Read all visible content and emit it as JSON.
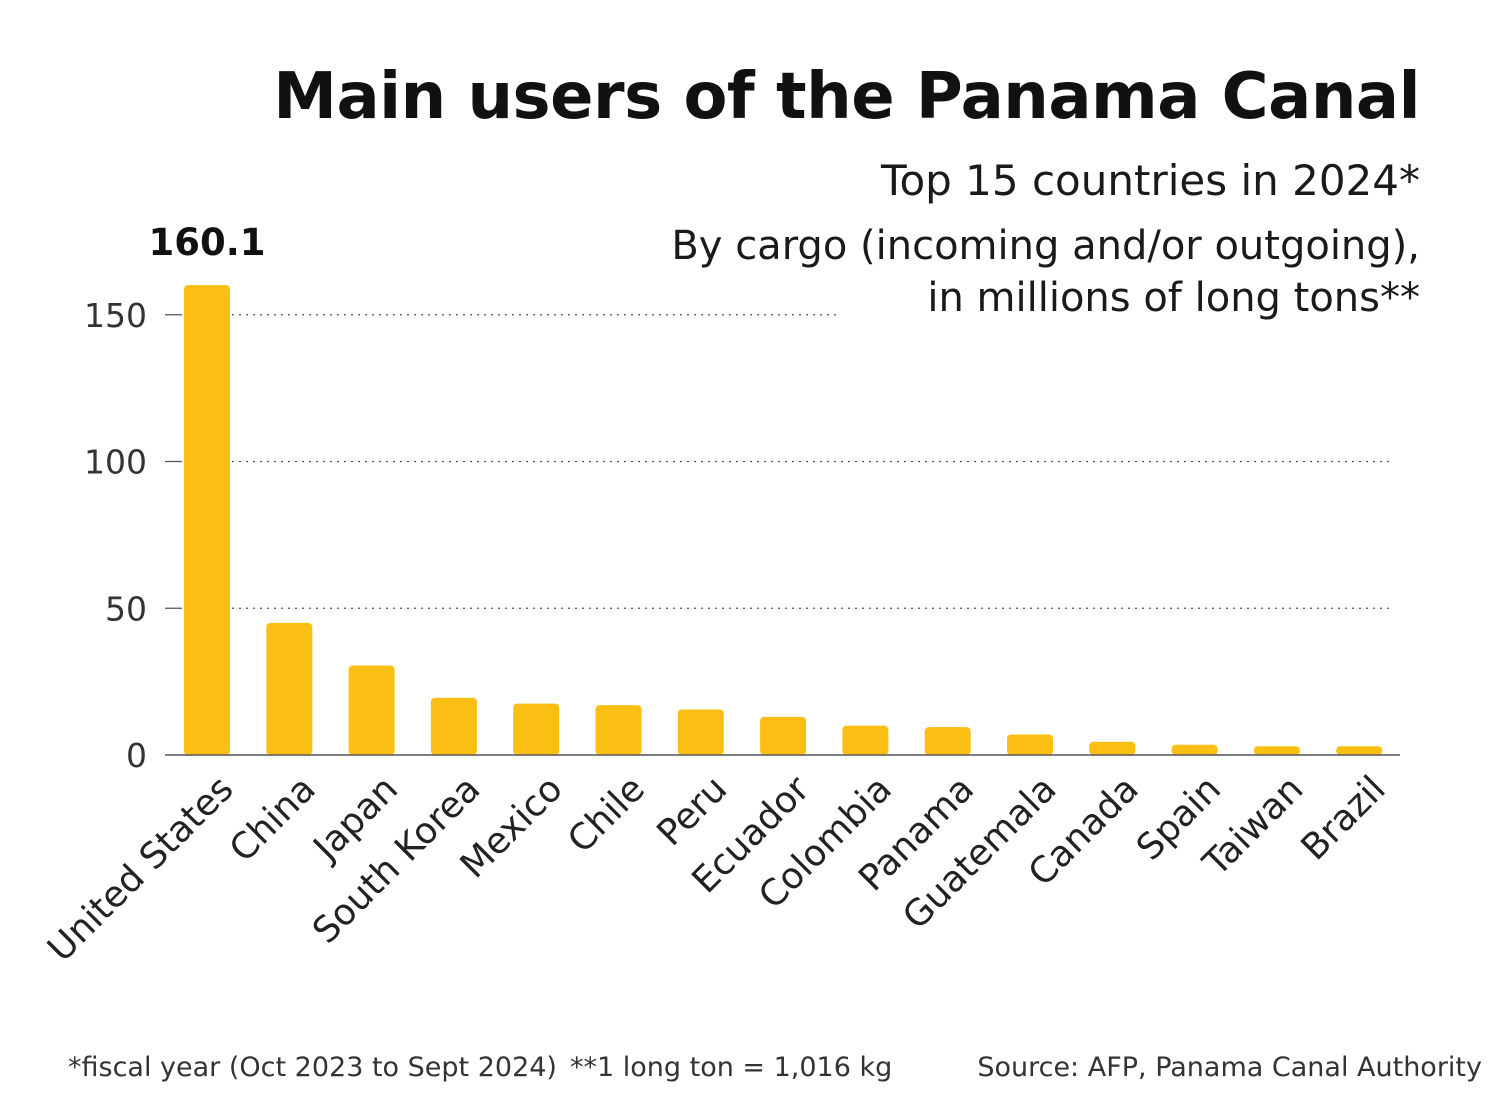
{
  "title": "Main users of the Panama Canal",
  "subtitle": "Top 15 countries in 2024*",
  "description": {
    "line1": "By cargo (incoming and/or outgoing),",
    "line2": "in millions of long tons**"
  },
  "footnotes": {
    "fiscal_year": "*fiscal year (Oct 2023 to Sept 2024)",
    "long_ton": "**1 long ton = 1,016 kg",
    "source": "Source: AFP, Panama Canal Authority"
  },
  "colors": {
    "bar": "#FBBF14",
    "grid": "#555555",
    "axis": "#555555",
    "text": "#1a1a1a"
  },
  "chart_data": {
    "type": "bar",
    "categories": [
      "United States",
      "China",
      "Japan",
      "South Korea",
      "Mexico",
      "Chile",
      "Peru",
      "Ecuador",
      "Colombia",
      "Panama",
      "Guatemala",
      "Canada",
      "Spain",
      "Taiwan",
      "Brazil"
    ],
    "values": [
      160.1,
      45,
      30.5,
      19.5,
      17.5,
      17,
      15.5,
      13,
      10,
      9.5,
      7,
      4.5,
      3.5,
      3,
      3
    ],
    "value_labels": [
      "160.1"
    ],
    "yticks": [
      0,
      50,
      100,
      150
    ],
    "ylim": [
      0,
      160.1
    ],
    "grid": true,
    "legend": false
  }
}
